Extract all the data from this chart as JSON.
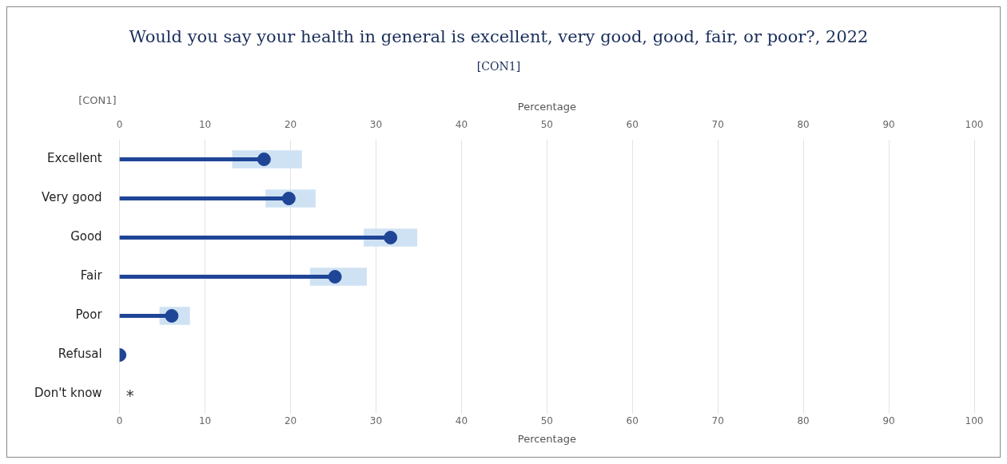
{
  "chart_data": {
    "type": "lollipop",
    "orientation": "horizontal",
    "title": "Would you say your health in general is excellent, very good, good, fair, or poor?, 2022",
    "subtitle": "[CON1]",
    "ylabel": "[CON1]",
    "xlabel": "Percentage",
    "x2label": "Percentage",
    "categories": [
      "Excellent",
      "Very good",
      "Good",
      "Fair",
      "Poor",
      "Refusal",
      "Don't know"
    ],
    "series": [
      {
        "type": "bar",
        "color": "#cfe2f3",
        "base": [
          13.2,
          17.1,
          28.6,
          22.3,
          4.7,
          null,
          null
        ],
        "values": [
          8.1,
          5.8,
          6.2,
          6.6,
          3.5,
          null,
          null
        ]
      },
      {
        "color": "#1f4597",
        "values": [
          16.9,
          19.8,
          31.7,
          25.2,
          6.1,
          0,
          null
        ]
      }
    ],
    "xlim": [
      0,
      100
    ],
    "xticks": [
      0,
      10,
      20,
      30,
      40,
      50,
      60,
      70,
      80,
      90,
      100
    ],
    "x2lim": [
      0,
      100
    ],
    "x2ticks": [
      0,
      10,
      20,
      30,
      40,
      50,
      60,
      70,
      80,
      90,
      100
    ],
    "grid": "x",
    "marker": "circle",
    "legend": false,
    "annotations": [
      "*"
    ]
  }
}
